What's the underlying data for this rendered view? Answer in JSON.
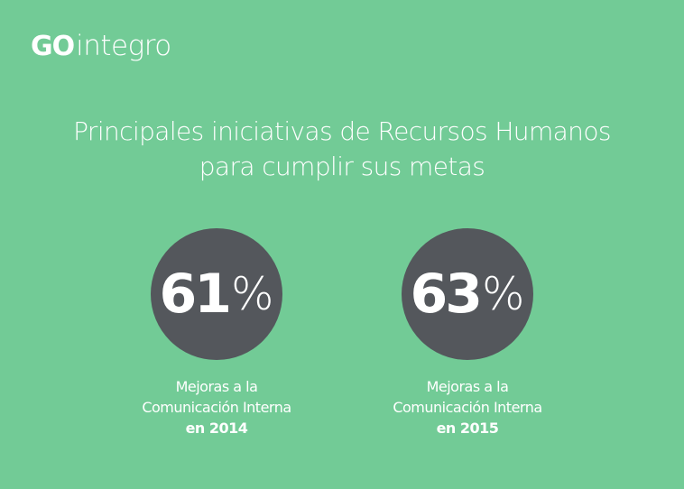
{
  "logo": {
    "prefix": "GO",
    "word": "integro"
  },
  "title": {
    "line1": "Principales iniciativas de Recursos Humanos",
    "line2": "para cumplir sus metas"
  },
  "stats": [
    {
      "value": "61",
      "unit": "%",
      "line1": "Mejoras a la",
      "line2": "Comunicación Interna",
      "year_label": "en 2014"
    },
    {
      "value": "63",
      "unit": "%",
      "line1": "Mejoras a la",
      "line2": "Comunicación Interna",
      "year_label": "en 2015"
    }
  ],
  "colors": {
    "background": "#72cb96",
    "circle": "#54575c",
    "text": "#ffffff"
  }
}
